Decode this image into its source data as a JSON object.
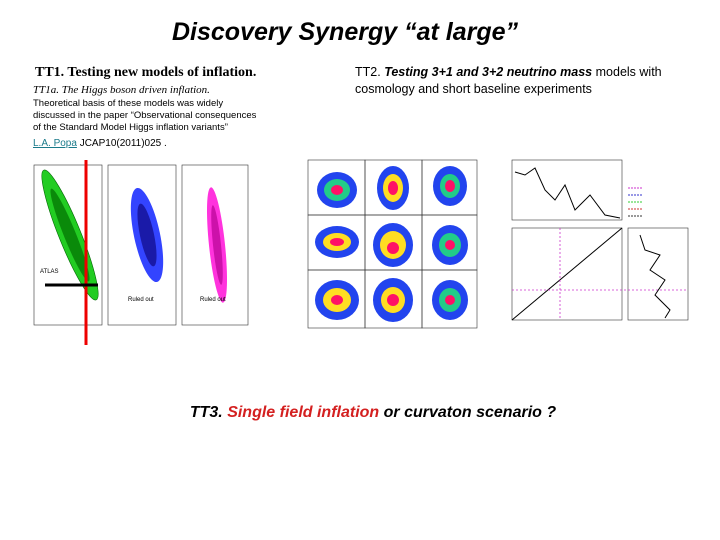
{
  "title": "Discovery Synergy “at large”",
  "tt1": {
    "heading": "TT1. Testing new models of inflation.",
    "subheading": "TT1a. The Higgs boson driven inflation.",
    "body": [
      "Theoretical basis of these models was widely",
      "discussed in the paper “Observational consequences",
      "of the Standard Model Higgs inflation variants”"
    ],
    "link": "L.A. Popa",
    "reference": "JCAP10(2011)025 ."
  },
  "tt2": {
    "label": "TT2.",
    "emphasis": "Testing 3+1 and 3+2 neutrino mass",
    "rest": "models with cosmology and short baseline  experiments"
  },
  "tt3": {
    "label": "TT3.",
    "emphasis": "Single field inflation",
    "rest": "or curvaton scenario ?"
  },
  "figure1": {
    "labels": [
      "ATLAS",
      "Ruled out",
      "Ruled out"
    ]
  }
}
